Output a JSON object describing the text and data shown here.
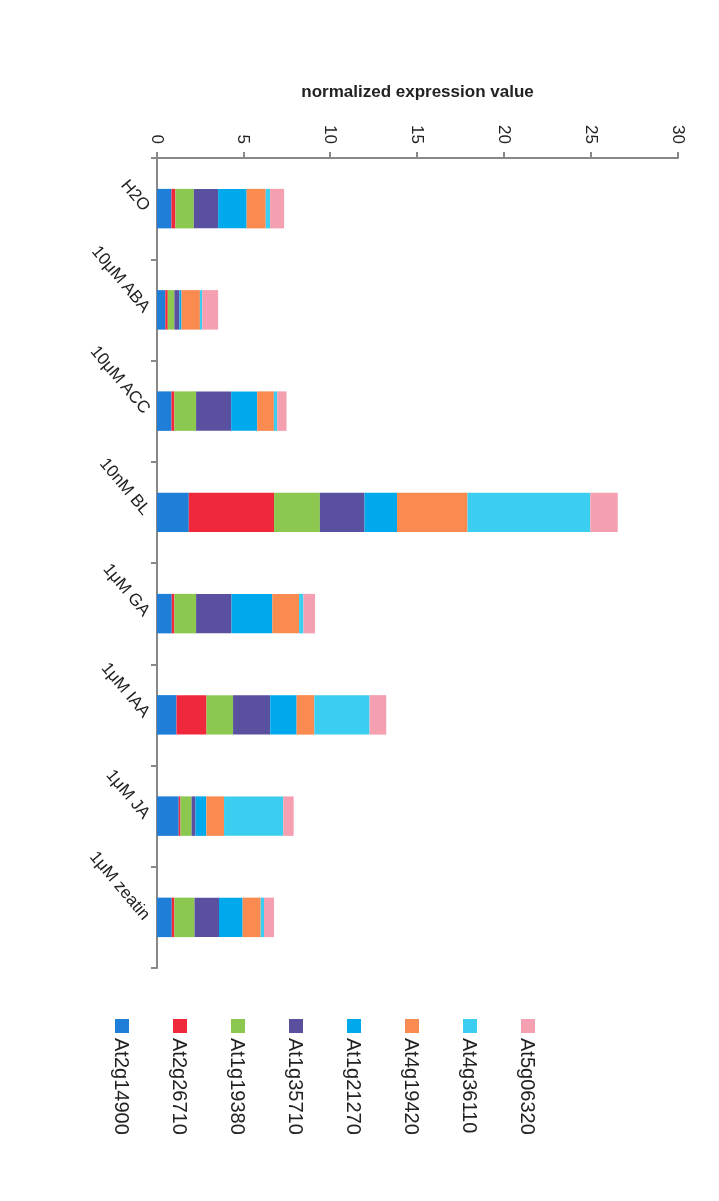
{
  "chart_data": {
    "type": "bar",
    "stacked": true,
    "orientation": "horizontal",
    "xlabel": "normalized expression value",
    "categories": [
      "H2O",
      "10μM ABA",
      "10μM ACC",
      "10nM BL",
      "1μM GA",
      "1μM IAA",
      "1μM JA",
      "1μM zeatin"
    ],
    "xlim": [
      0,
      30
    ],
    "xticks": [
      0,
      5,
      10,
      15,
      20,
      25,
      30
    ],
    "grid": false,
    "legend": "bottom",
    "series": [
      {
        "name": "At2g14900",
        "color": "#1f7fd8",
        "values": [
          0.83,
          0.48,
          0.83,
          1.83,
          0.85,
          1.12,
          1.25,
          0.85
        ]
      },
      {
        "name": "At2g26710",
        "color": "#f0283c",
        "values": [
          0.23,
          0.14,
          0.17,
          4.91,
          0.15,
          1.73,
          0.1,
          0.15
        ]
      },
      {
        "name": "At1g19380",
        "color": "#8cc850",
        "values": [
          1.06,
          0.38,
          1.25,
          2.64,
          1.25,
          1.53,
          0.64,
          1.16
        ]
      },
      {
        "name": "At1g35710",
        "color": "#5a50a0",
        "values": [
          1.4,
          0.29,
          2.02,
          2.57,
          2.04,
          2.14,
          0.23,
          1.41
        ]
      },
      {
        "name": "At1g21270",
        "color": "#00a8ec",
        "values": [
          1.64,
          0.12,
          1.5,
          1.87,
          2.35,
          1.52,
          0.62,
          1.36
        ]
      },
      {
        "name": "At4g19420",
        "color": "#f98a50",
        "values": [
          1.1,
          1.06,
          0.96,
          4.06,
          1.54,
          1.02,
          1.02,
          1.04
        ]
      },
      {
        "name": "At4g36110",
        "color": "#3ccef0",
        "values": [
          0.25,
          0.13,
          0.19,
          7.07,
          0.25,
          3.18,
          3.41,
          0.19
        ]
      },
      {
        "name": "At5g06320",
        "color": "#f4a0b0",
        "values": [
          0.81,
          0.92,
          0.54,
          1.58,
          0.67,
          0.96,
          0.6,
          0.58
        ]
      }
    ]
  }
}
